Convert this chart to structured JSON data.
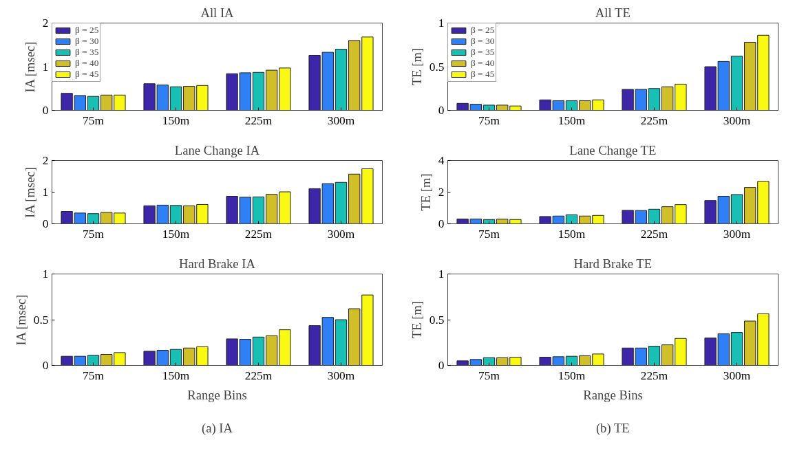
{
  "chart_data": [
    {
      "type": "bar",
      "title": "All IA",
      "ylabel": "IA [msec]",
      "categories": [
        "75m",
        "150m",
        "225m",
        "300m"
      ],
      "ylim": [
        0,
        2
      ],
      "yticks": [
        0,
        1,
        2
      ],
      "legend": "top left",
      "series": [
        {
          "name": "β = 25",
          "color": "#3e26a8",
          "values": [
            0.39,
            0.61,
            0.84,
            1.26
          ]
        },
        {
          "name": "β = 30",
          "color": "#2f80f6",
          "values": [
            0.34,
            0.58,
            0.86,
            1.33
          ]
        },
        {
          "name": "β = 35",
          "color": "#17bfb4",
          "values": [
            0.32,
            0.54,
            0.87,
            1.4
          ]
        },
        {
          "name": "β = 40",
          "color": "#d1bf2a",
          "values": [
            0.35,
            0.55,
            0.92,
            1.6
          ]
        },
        {
          "name": "β = 45",
          "color": "#f9f914",
          "values": [
            0.35,
            0.57,
            0.97,
            1.68
          ]
        }
      ]
    },
    {
      "type": "bar",
      "title": "All TE",
      "ylabel": "TE [m]",
      "categories": [
        "75m",
        "150m",
        "225m",
        "300m"
      ],
      "ylim": [
        0,
        1
      ],
      "yticks": [
        0,
        0.5,
        1
      ],
      "legend": "top left",
      "series": [
        {
          "name": "β = 25",
          "color": "#3e26a8",
          "values": [
            0.08,
            0.12,
            0.24,
            0.5
          ]
        },
        {
          "name": "β = 30",
          "color": "#2f80f6",
          "values": [
            0.07,
            0.11,
            0.24,
            0.56
          ]
        },
        {
          "name": "β = 35",
          "color": "#17bfb4",
          "values": [
            0.06,
            0.11,
            0.25,
            0.62
          ]
        },
        {
          "name": "β = 40",
          "color": "#d1bf2a",
          "values": [
            0.06,
            0.11,
            0.27,
            0.78
          ]
        },
        {
          "name": "β = 45",
          "color": "#f9f914",
          "values": [
            0.05,
            0.12,
            0.3,
            0.86
          ]
        }
      ]
    },
    {
      "type": "bar",
      "title": "Lane Change IA",
      "ylabel": "IA [msec]",
      "categories": [
        "75m",
        "150m",
        "225m",
        "300m"
      ],
      "ylim": [
        0,
        2
      ],
      "yticks": [
        0,
        1,
        2
      ],
      "series": [
        {
          "color": "#3e26a8",
          "values": [
            0.39,
            0.57,
            0.87,
            1.11
          ]
        },
        {
          "color": "#2f80f6",
          "values": [
            0.34,
            0.59,
            0.84,
            1.27
          ]
        },
        {
          "color": "#17bfb4",
          "values": [
            0.32,
            0.58,
            0.85,
            1.31
          ]
        },
        {
          "color": "#d1bf2a",
          "values": [
            0.36,
            0.57,
            0.93,
            1.57
          ]
        },
        {
          "color": "#f9f914",
          "values": [
            0.34,
            0.61,
            1.01,
            1.74
          ]
        }
      ]
    },
    {
      "type": "bar",
      "title": "Lane Change TE",
      "ylabel": "TE [m]",
      "categories": [
        "75m",
        "150m",
        "225m",
        "300m"
      ],
      "ylim": [
        0,
        4
      ],
      "yticks": [
        0,
        2,
        4
      ],
      "series": [
        {
          "color": "#3e26a8",
          "values": [
            0.3,
            0.46,
            0.85,
            1.47
          ]
        },
        {
          "color": "#2f80f6",
          "values": [
            0.3,
            0.49,
            0.84,
            1.74
          ]
        },
        {
          "color": "#17bfb4",
          "values": [
            0.27,
            0.57,
            0.92,
            1.85
          ]
        },
        {
          "color": "#d1bf2a",
          "values": [
            0.29,
            0.49,
            1.08,
            2.3
          ]
        },
        {
          "color": "#f9f914",
          "values": [
            0.27,
            0.53,
            1.21,
            2.68
          ]
        }
      ]
    },
    {
      "type": "bar",
      "title": "Hard Brake IA",
      "ylabel": "IA [msec]",
      "xlabel": "Range Bins",
      "annotations": [
        "(a) IA"
      ],
      "categories": [
        "75m",
        "150m",
        "225m",
        "300m"
      ],
      "ylim": [
        0,
        1
      ],
      "yticks": [
        0,
        0.5,
        1
      ],
      "series": [
        {
          "color": "#3e26a8",
          "values": [
            0.1,
            0.155,
            0.29,
            0.435
          ]
        },
        {
          "color": "#2f80f6",
          "values": [
            0.1,
            0.165,
            0.285,
            0.525
          ]
        },
        {
          "color": "#17bfb4",
          "values": [
            0.11,
            0.175,
            0.31,
            0.5
          ]
        },
        {
          "color": "#d1bf2a",
          "values": [
            0.12,
            0.19,
            0.325,
            0.62
          ]
        },
        {
          "color": "#f9f914",
          "values": [
            0.14,
            0.205,
            0.39,
            0.77
          ]
        }
      ]
    },
    {
      "type": "bar",
      "title": "Hard Brake TE",
      "ylabel": "TE [m]",
      "xlabel": "Range Bins",
      "annotations": [
        "(b) TE"
      ],
      "categories": [
        "75m",
        "150m",
        "225m",
        "300m"
      ],
      "ylim": [
        0,
        1
      ],
      "yticks": [
        0,
        0.5,
        1
      ],
      "series": [
        {
          "color": "#3e26a8",
          "values": [
            0.05,
            0.09,
            0.19,
            0.3
          ]
        },
        {
          "color": "#2f80f6",
          "values": [
            0.065,
            0.095,
            0.19,
            0.345
          ]
        },
        {
          "color": "#17bfb4",
          "values": [
            0.085,
            0.1,
            0.21,
            0.36
          ]
        },
        {
          "color": "#d1bf2a",
          "values": [
            0.085,
            0.105,
            0.225,
            0.485
          ]
        },
        {
          "color": "#f9f914",
          "values": [
            0.09,
            0.125,
            0.295,
            0.565
          ]
        }
      ]
    }
  ]
}
